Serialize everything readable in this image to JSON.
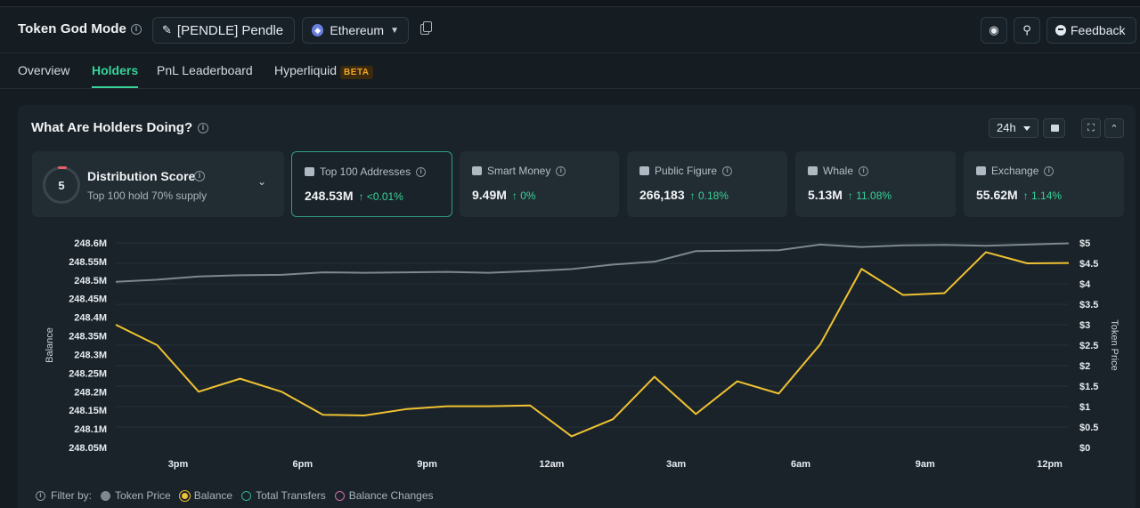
{
  "header": {
    "title": "Token God Mode",
    "token_label": "[PENDLE] Pendle",
    "chain_label": "Ethereum",
    "feedback_label": "Feedback"
  },
  "tabs": [
    {
      "label": "Overview",
      "active": false
    },
    {
      "label": "Holders",
      "active": true
    },
    {
      "label": "PnL Leaderboard",
      "active": false
    },
    {
      "label": "Hyperliquid",
      "active": false,
      "badge": "BETA"
    }
  ],
  "panel": {
    "title": "What Are Holders Doing?",
    "range": "24h"
  },
  "distribution": {
    "score": "5",
    "title": "Distribution Score",
    "subtitle": "Top 100 hold 70% supply"
  },
  "cards": [
    {
      "label": "Top 100 Addresses",
      "value": "248.53M",
      "change": "↑ <0.01%",
      "selected": true,
      "icon": "wallet-icon"
    },
    {
      "label": "Smart Money",
      "value": "9.49M",
      "change": "↑ 0%",
      "selected": false,
      "icon": "smart-money-icon"
    },
    {
      "label": "Public Figure",
      "value": "266,183",
      "change": "↑ 0.18%",
      "selected": false,
      "icon": "public-figure-icon"
    },
    {
      "label": "Whale",
      "value": "5.13M",
      "change": "↑ 11.08%",
      "selected": false,
      "icon": "whale-icon"
    },
    {
      "label": "Exchange",
      "value": "55.62M",
      "change": "↑ 1.14%",
      "selected": false,
      "icon": "exchange-icon"
    }
  ],
  "legend": {
    "filter_label": "Filter by:",
    "items": [
      {
        "label": "Token Price",
        "color": "#7d8890",
        "style": "filled"
      },
      {
        "label": "Balance",
        "color": "#f0c232",
        "style": "ring"
      },
      {
        "label": "Total Transfers",
        "color": "#2fb08a",
        "style": "outline"
      },
      {
        "label": "Balance Changes",
        "color": "#d46aa8",
        "style": "outline"
      }
    ]
  },
  "chart_data": {
    "type": "line",
    "xlabel": "",
    "ylabel": "Balance",
    "y2label": "Token Price",
    "x_ticks": [
      "3pm",
      "6pm",
      "9pm",
      "12am",
      "3am",
      "6am",
      "9am",
      "12pm"
    ],
    "y_ticks": [
      "248.6M",
      "248.55M",
      "248.5M",
      "248.45M",
      "248.4M",
      "248.35M",
      "248.3M",
      "248.25M",
      "248.2M",
      "248.15M",
      "248.1M",
      "248.05M"
    ],
    "y2_ticks": [
      "$5",
      "$4.5",
      "$4",
      "$3.5",
      "$3",
      "$2.5",
      "$2",
      "$1.5",
      "$1",
      "$0.5",
      "$0"
    ],
    "ylim": [
      248.05,
      248.6
    ],
    "y2lim": [
      0,
      5
    ],
    "grid": true,
    "series": [
      {
        "name": "Balance",
        "color": "#f0c232",
        "axis": "left",
        "values": [
          248.38,
          248.325,
          248.2,
          248.235,
          248.2,
          248.138,
          248.136,
          248.153,
          248.161,
          248.161,
          248.163,
          248.08,
          248.126,
          248.24,
          248.14,
          248.228,
          248.195,
          248.327,
          248.53,
          248.46,
          248.465,
          248.575,
          248.545,
          248.546
        ]
      },
      {
        "name": "Token Price",
        "color": "#7d8890",
        "axis": "right",
        "values": [
          4.05,
          4.1,
          4.18,
          4.21,
          4.22,
          4.28,
          4.27,
          4.28,
          4.29,
          4.27,
          4.31,
          4.36,
          4.47,
          4.54,
          4.8,
          4.81,
          4.82,
          4.96,
          4.9,
          4.94,
          4.95,
          4.93,
          4.96,
          4.99
        ]
      }
    ]
  }
}
